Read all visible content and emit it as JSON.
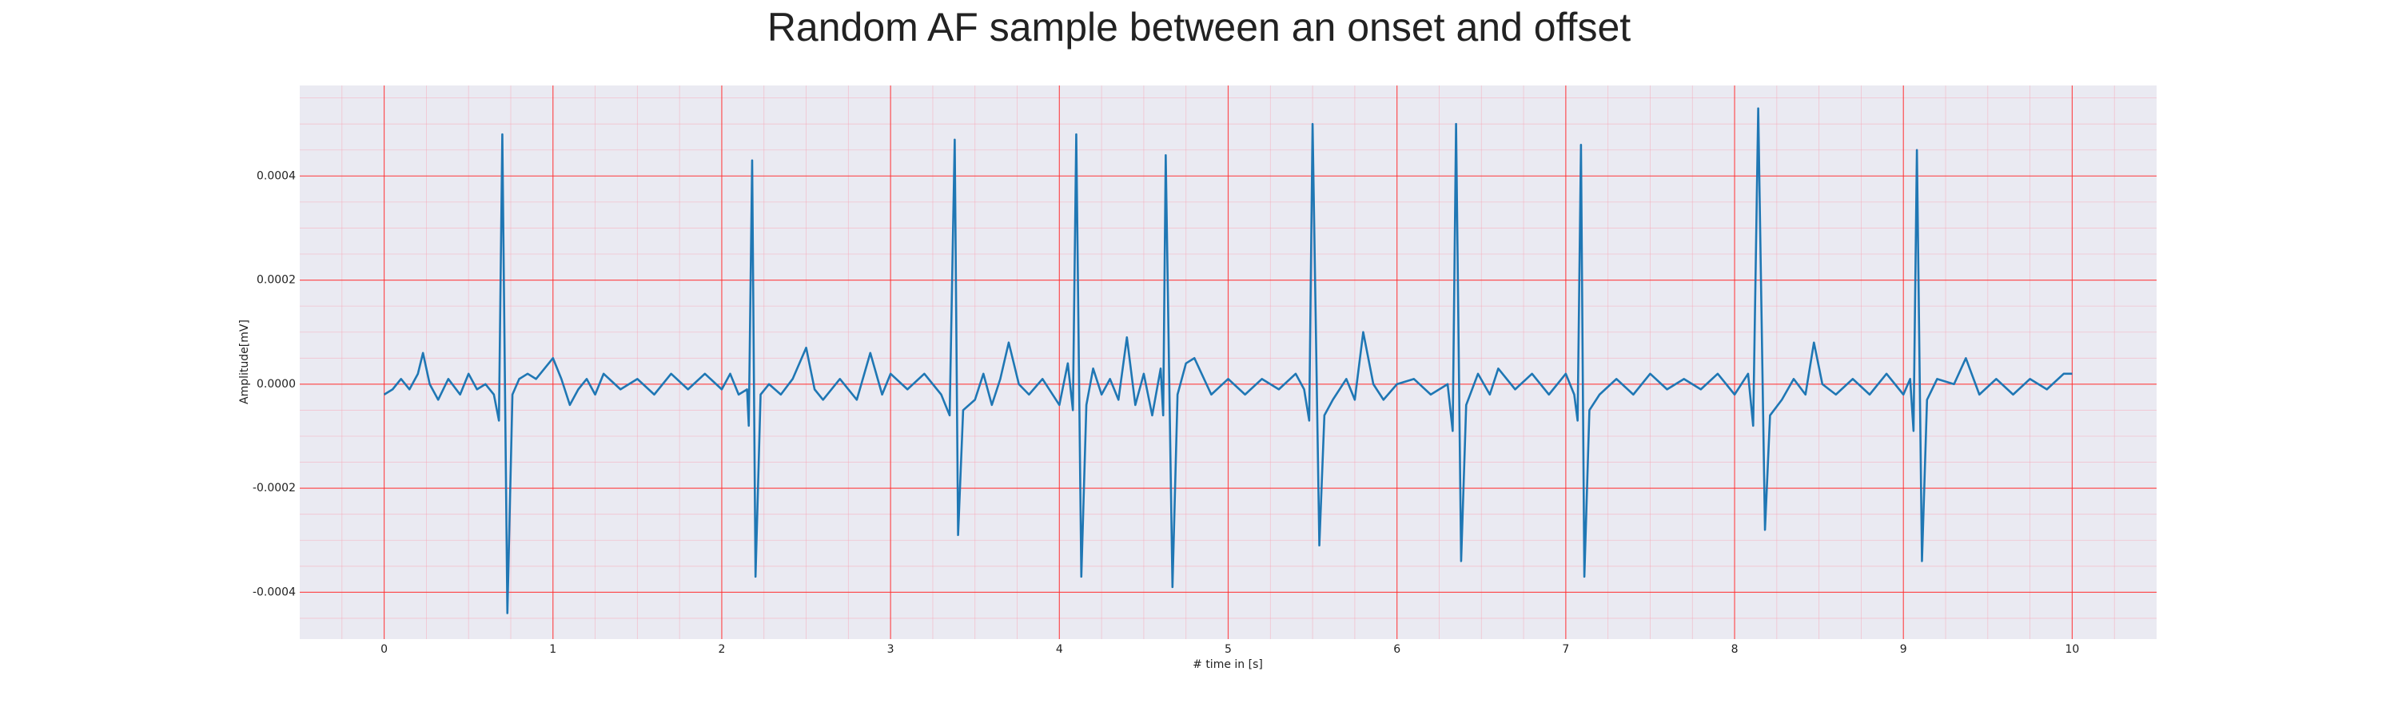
{
  "chart_data": {
    "type": "line",
    "title": "Random AF sample between an onset and offset",
    "xlabel": "# time in [s]",
    "ylabel": "Amplitude[mV]",
    "color": "#1f77b4",
    "grid": true,
    "minor_grid": true,
    "xlim": [
      -0.5,
      10.5
    ],
    "ylim": [
      -0.00049,
      0.000574
    ],
    "xticks": [
      0,
      1,
      2,
      3,
      4,
      5,
      6,
      7,
      8,
      9,
      10
    ],
    "yticks": [
      {
        "value": -0.0004,
        "label": "-0.0004"
      },
      {
        "value": -0.0002,
        "label": "-0.0002"
      },
      {
        "value": 0,
        "label": "0.0000"
      },
      {
        "value": 0.0002,
        "label": "0.0002"
      },
      {
        "value": 0.0004,
        "label": "0.0004"
      }
    ],
    "x": [
      0,
      0.05,
      0.1,
      0.15,
      0.2,
      0.23,
      0.27,
      0.32,
      0.38,
      0.45,
      0.5,
      0.55,
      0.6,
      0.65,
      0.68,
      0.7,
      0.73,
      0.76,
      0.8,
      0.85,
      0.9,
      0.95,
      1.0,
      1.05,
      1.1,
      1.15,
      1.2,
      1.25,
      1.3,
      1.4,
      1.5,
      1.6,
      1.7,
      1.8,
      1.9,
      2.0,
      2.05,
      2.1,
      2.15,
      2.16,
      2.18,
      2.2,
      2.23,
      2.28,
      2.35,
      2.42,
      2.5,
      2.55,
      2.6,
      2.7,
      2.8,
      2.88,
      2.95,
      3.0,
      3.1,
      3.2,
      3.3,
      3.35,
      3.38,
      3.4,
      3.43,
      3.5,
      3.55,
      3.6,
      3.65,
      3.7,
      3.76,
      3.82,
      3.9,
      4.0,
      4.05,
      4.08,
      4.1,
      4.13,
      4.16,
      4.2,
      4.25,
      4.3,
      4.35,
      4.4,
      4.45,
      4.5,
      4.55,
      4.6,
      4.615,
      4.63,
      4.67,
      4.7,
      4.75,
      4.8,
      4.9,
      5.0,
      5.1,
      5.2,
      5.3,
      5.4,
      5.45,
      5.48,
      5.5,
      5.54,
      5.57,
      5.62,
      5.7,
      5.75,
      5.8,
      5.86,
      5.92,
      6.0,
      6.1,
      6.2,
      6.3,
      6.33,
      6.35,
      6.38,
      6.41,
      6.48,
      6.55,
      6.6,
      6.7,
      6.8,
      6.9,
      7.0,
      7.05,
      7.07,
      7.09,
      7.11,
      7.14,
      7.2,
      7.3,
      7.4,
      7.5,
      7.6,
      7.7,
      7.8,
      7.9,
      8.0,
      8.08,
      8.11,
      8.14,
      8.18,
      8.21,
      8.28,
      8.35,
      8.42,
      8.47,
      8.52,
      8.6,
      8.7,
      8.8,
      8.9,
      9.0,
      9.04,
      9.06,
      9.08,
      9.11,
      9.14,
      9.2,
      9.3,
      9.37,
      9.45,
      9.55,
      9.65,
      9.75,
      9.85,
      9.95,
      10.0
    ],
    "values": [
      -2e-05,
      -1e-05,
      1e-05,
      -1e-05,
      2e-05,
      6e-05,
      0,
      -3e-05,
      1e-05,
      -2e-05,
      2e-05,
      -1e-05,
      0,
      -2e-05,
      -7e-05,
      0.00048,
      -0.00044,
      -2e-05,
      1e-05,
      2e-05,
      1e-05,
      3e-05,
      5e-05,
      1e-05,
      -4e-05,
      -1e-05,
      1e-05,
      -2e-05,
      2e-05,
      -1e-05,
      1e-05,
      -2e-05,
      2e-05,
      -1e-05,
      2e-05,
      -1e-05,
      2e-05,
      -2e-05,
      -1e-05,
      -8e-05,
      0.00043,
      -0.00037,
      -2e-05,
      0,
      -2e-05,
      1e-05,
      7e-05,
      -1e-05,
      -3e-05,
      1e-05,
      -3e-05,
      6e-05,
      -2e-05,
      2e-05,
      -1e-05,
      2e-05,
      -2e-05,
      -6e-05,
      0.00047,
      -0.00029,
      -5e-05,
      -3e-05,
      2e-05,
      -4e-05,
      1e-05,
      8e-05,
      0,
      -2e-05,
      1e-05,
      -4e-05,
      4e-05,
      -5e-05,
      0.00048,
      -0.00037,
      -4e-05,
      3e-05,
      -2e-05,
      1e-05,
      -3e-05,
      9e-05,
      -4e-05,
      2e-05,
      -6e-05,
      3e-05,
      -6e-05,
      0.00044,
      -0.00039,
      -2e-05,
      4e-05,
      5e-05,
      -2e-05,
      1e-05,
      -2e-05,
      1e-05,
      -1e-05,
      2e-05,
      -1e-05,
      -7e-05,
      0.0005,
      -0.00031,
      -6e-05,
      -3e-05,
      1e-05,
      -3e-05,
      0.0001,
      0,
      -3e-05,
      0,
      1e-05,
      -2e-05,
      0,
      -9e-05,
      0.0005,
      -0.00034,
      -4e-05,
      2e-05,
      -2e-05,
      3e-05,
      -1e-05,
      2e-05,
      -2e-05,
      2e-05,
      -2e-05,
      -7e-05,
      0.00046,
      -0.00037,
      -5e-05,
      -2e-05,
      1e-05,
      -2e-05,
      2e-05,
      -1e-05,
      1e-05,
      -1e-05,
      2e-05,
      -2e-05,
      2e-05,
      -8e-05,
      0.00053,
      -0.00028,
      -6e-05,
      -3e-05,
      1e-05,
      -2e-05,
      8e-05,
      0,
      -2e-05,
      1e-05,
      -2e-05,
      2e-05,
      -2e-05,
      1e-05,
      -9e-05,
      0.00045,
      -0.00034,
      -3e-05,
      1e-05,
      0,
      5e-05,
      -2e-05,
      1e-05,
      -2e-05,
      1e-05,
      -1e-05,
      2e-05,
      2e-05
    ]
  }
}
